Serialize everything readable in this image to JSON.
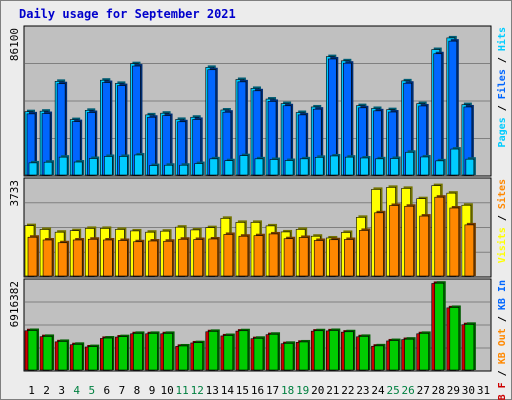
{
  "page_title": "Daily usage for September 2021",
  "colors": {
    "frame_bg": "#ececec",
    "panel_bg": "#c0c0c0",
    "hits": "#00ccff",
    "files": "#0066ff",
    "pages": "#00ccff",
    "visits": "#ffff00",
    "sites": "#ff8800",
    "kb_in": "#00cc00",
    "kb_out": "#cc0000",
    "weekend_day": "#008040",
    "weekday_day": "#000000"
  },
  "chart_data": [
    {
      "type": "bar",
      "name": "requests",
      "categories": [
        "1",
        "2",
        "3",
        "4",
        "5",
        "6",
        "7",
        "8",
        "9",
        "10",
        "11",
        "12",
        "13",
        "14",
        "15",
        "16",
        "17",
        "18",
        "19",
        "20",
        "21",
        "22",
        "23",
        "24",
        "25",
        "26",
        "27",
        "28",
        "29",
        "30",
        "31"
      ],
      "weekend_days": [
        4,
        5,
        11,
        12,
        18,
        19,
        25,
        26
      ],
      "y_max_label": "86100",
      "y_max": 86100,
      "series": [
        {
          "name": "Hits",
          "values": [
            37600,
            37900,
            55600,
            32900,
            38400,
            56300,
            54400,
            66100,
            35700,
            36700,
            33000,
            34300,
            63900,
            38600,
            56700,
            51400,
            45100,
            42400,
            37100,
            40400,
            70300,
            67800,
            41200,
            39500,
            38800,
            55900,
            42400,
            74500,
            81400,
            41800,
            0
          ]
        },
        {
          "name": "Files",
          "values": [
            36300,
            36500,
            54200,
            31700,
            37100,
            54900,
            53100,
            64700,
            34300,
            35300,
            31600,
            33000,
            62500,
            37300,
            55300,
            50000,
            43700,
            41100,
            35700,
            39100,
            68900,
            66400,
            39900,
            38100,
            37400,
            54500,
            41000,
            72000,
            79500,
            40400,
            0
          ]
        },
        {
          "name": "Pages",
          "values": [
            7200,
            7600,
            10600,
            7700,
            9800,
            11000,
            11000,
            11900,
            5600,
            5800,
            5800,
            6800,
            9600,
            8500,
            11500,
            9600,
            9200,
            8600,
            9600,
            10500,
            11300,
            10600,
            10100,
            9600,
            9800,
            13500,
            10700,
            8400,
            15400,
            9400,
            0
          ]
        }
      ],
      "legend": [
        "Pages",
        "Files",
        "Hits"
      ],
      "legend_placement": "right",
      "grid": true
    },
    {
      "type": "bar",
      "name": "visitors",
      "categories": [
        "1",
        "2",
        "3",
        "4",
        "5",
        "6",
        "7",
        "8",
        "9",
        "10",
        "11",
        "12",
        "13",
        "14",
        "15",
        "16",
        "17",
        "18",
        "19",
        "20",
        "21",
        "22",
        "23",
        "24",
        "25",
        "26",
        "27",
        "28",
        "29",
        "30",
        "31"
      ],
      "y_max_label": "3733",
      "y_max": 3733,
      "series": [
        {
          "name": "Visits",
          "values": [
            2000,
            1850,
            1740,
            1800,
            1890,
            1890,
            1850,
            1790,
            1740,
            1780,
            1940,
            1830,
            1920,
            2290,
            2130,
            2130,
            1990,
            1750,
            1850,
            1580,
            1510,
            1730,
            2330,
            3440,
            3520,
            3480,
            3070,
            3590,
            3290,
            2810,
            0
          ]
        },
        {
          "name": "Sites",
          "values": [
            1540,
            1430,
            1320,
            1430,
            1460,
            1430,
            1410,
            1360,
            1390,
            1380,
            1460,
            1450,
            1470,
            1650,
            1580,
            1600,
            1670,
            1480,
            1530,
            1410,
            1440,
            1450,
            1810,
            2510,
            2800,
            2770,
            2380,
            3130,
            2700,
            2030,
            0
          ]
        }
      ],
      "legend": [
        "Visits",
        "Sites"
      ],
      "legend_placement": "right",
      "grid": true
    },
    {
      "type": "bar",
      "name": "traffic",
      "categories": [
        "1",
        "2",
        "3",
        "4",
        "5",
        "6",
        "7",
        "8",
        "9",
        "10",
        "11",
        "12",
        "13",
        "14",
        "15",
        "16",
        "17",
        "18",
        "19",
        "20",
        "21",
        "22",
        "23",
        "24",
        "25",
        "26",
        "27",
        "28",
        "29",
        "30",
        "31"
      ],
      "y_max_label": "6916382",
      "y_max": 6916382,
      "series": [
        {
          "name": "KB In",
          "values": [
            3140000,
            2670000,
            2270000,
            2040000,
            1860000,
            2540000,
            2650000,
            2910000,
            2910000,
            2910000,
            1910000,
            2170000,
            3070000,
            2740000,
            3120000,
            2520000,
            2840000,
            2120000,
            2230000,
            3120000,
            3140000,
            3040000,
            2670000,
            1920000,
            2340000,
            2450000,
            2910000,
            6900000,
            4970000,
            3630000,
            0
          ]
        },
        {
          "name": "KB Out",
          "values": [
            3120000,
            2650000,
            2240000,
            2010000,
            1830000,
            2510000,
            2620000,
            2880000,
            2880000,
            2880000,
            1880000,
            2150000,
            3040000,
            2710000,
            3090000,
            2490000,
            2810000,
            2090000,
            2200000,
            3090000,
            3110000,
            3010000,
            2640000,
            1890000,
            2310000,
            2420000,
            2880000,
            6880000,
            4940000,
            3600000,
            0
          ]
        }
      ],
      "legend": [
        "KB F",
        "KB Out",
        "KB In"
      ],
      "legend_placement": "right",
      "grid": true
    }
  ]
}
